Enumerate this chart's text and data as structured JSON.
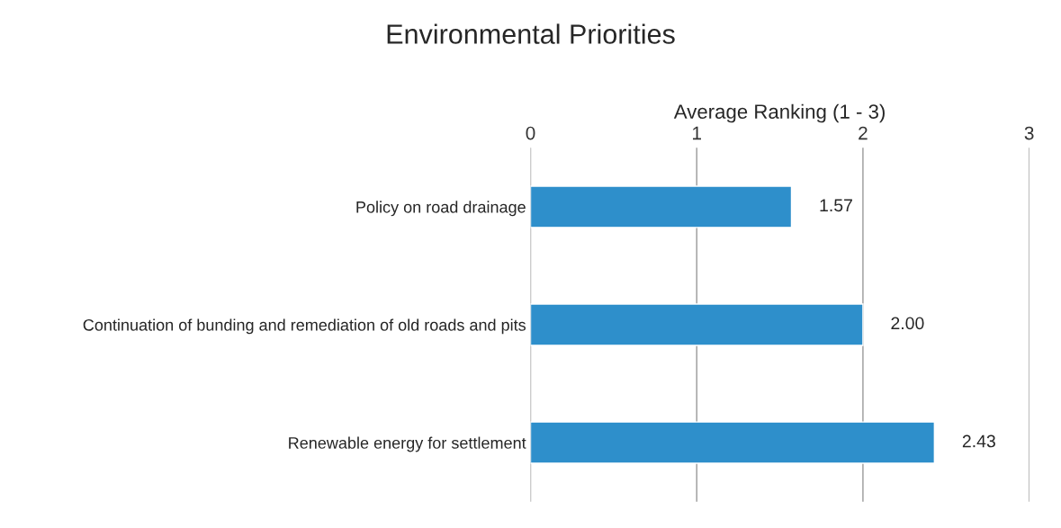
{
  "chart_data": {
    "type": "bar",
    "orientation": "horizontal",
    "title": "Environmental Priorities",
    "xlabel": "Average Ranking (1 - 3)",
    "categories": [
      "Policy on road drainage",
      "Continuation of bunding and remediation of old roads and pits",
      "Renewable energy for settlement"
    ],
    "values": [
      1.57,
      2.0,
      2.43
    ],
    "value_labels": [
      "1.57",
      "2.00",
      "2.43"
    ],
    "color": "#2e8fcb",
    "xlim": [
      0,
      3
    ],
    "xticks": [
      0,
      1,
      2,
      3
    ],
    "grid": "x",
    "legend": false
  }
}
